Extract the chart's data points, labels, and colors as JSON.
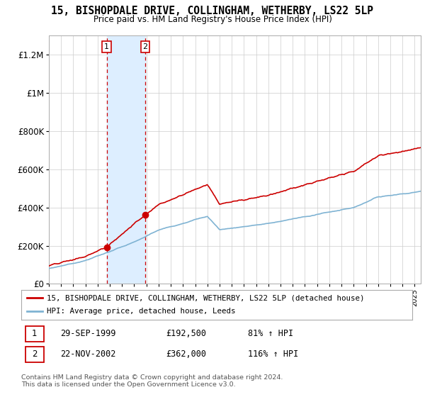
{
  "title": "15, BISHOPDALE DRIVE, COLLINGHAM, WETHERBY, LS22 5LP",
  "subtitle": "Price paid vs. HM Land Registry's House Price Index (HPI)",
  "hpi_legend": "HPI: Average price, detached house, Leeds",
  "property_legend": "15, BISHOPDALE DRIVE, COLLINGHAM, WETHERBY, LS22 5LP (detached house)",
  "footnote": "Contains HM Land Registry data © Crown copyright and database right 2024.\nThis data is licensed under the Open Government Licence v3.0.",
  "transaction1_date": "29-SEP-1999",
  "transaction1_price": "£192,500",
  "transaction1_hpi": "81% ↑ HPI",
  "transaction2_date": "22-NOV-2002",
  "transaction2_price": "£362,000",
  "transaction2_hpi": "116% ↑ HPI",
  "ylim": [
    0,
    1300000
  ],
  "yticks": [
    0,
    200000,
    400000,
    600000,
    800000,
    1000000,
    1200000
  ],
  "ytick_labels": [
    "£0",
    "£200K",
    "£400K",
    "£600K",
    "£800K",
    "£1M",
    "£1.2M"
  ],
  "property_color": "#cc0000",
  "hpi_color": "#7fb3d3",
  "highlight_color": "#ddeeff",
  "highlight_border": "#cc0000",
  "t1_x": 1999.75,
  "t1_y": 192500,
  "t2_x": 2002.9,
  "t2_y": 362000,
  "xmin": 1995,
  "xmax": 2025.5,
  "background": "#f5f5f5"
}
